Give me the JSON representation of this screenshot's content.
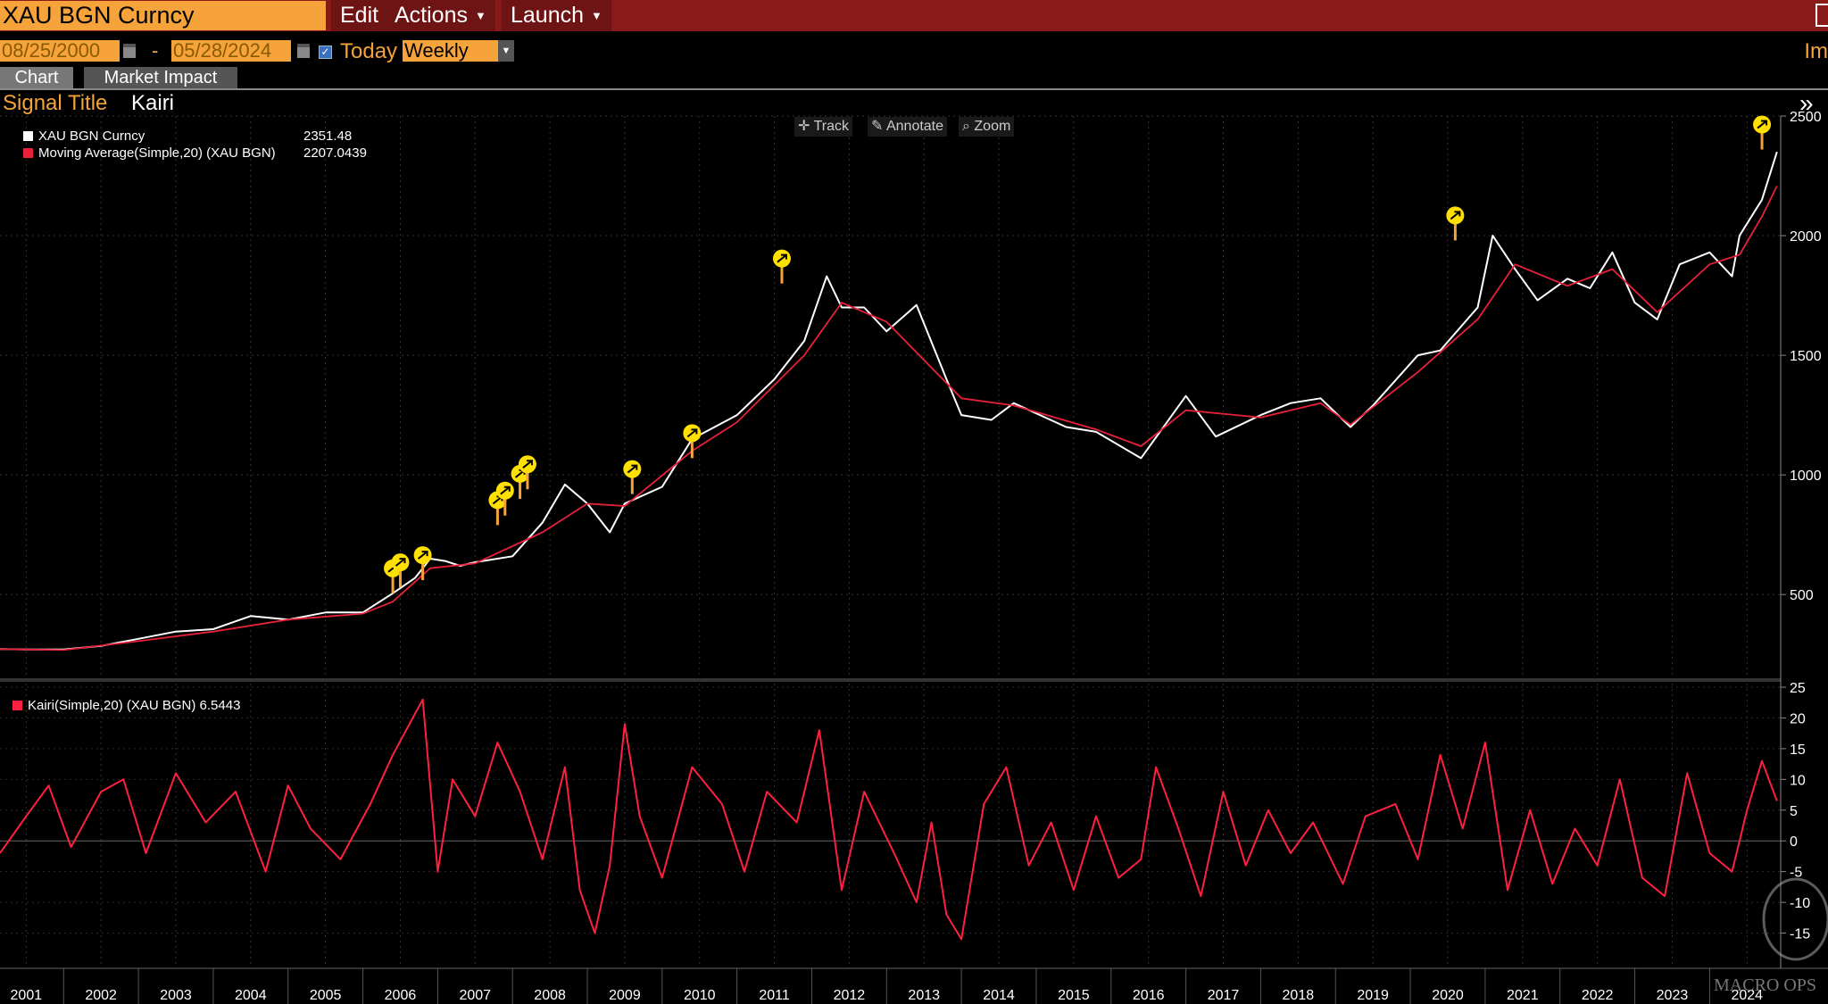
{
  "toolbar": {
    "ticker": "XAU BGN Curncy",
    "menus": [
      {
        "label": "Edit"
      },
      {
        "label": "Actions"
      },
      {
        "label": "Launch"
      }
    ]
  },
  "dates": {
    "start": "08/25/2000",
    "end": "05/28/2024",
    "separator": "-",
    "today_label": "Today",
    "today_checked": true,
    "frequency": "Weekly",
    "right_truncated": "Im"
  },
  "tabs": [
    {
      "label": "Chart",
      "active": true
    },
    {
      "label": "Market Impact",
      "active": false
    }
  ],
  "signal": {
    "label": "Signal Title",
    "value": "Kairi"
  },
  "chart_tools": [
    {
      "label": "Track",
      "icon": "crosshair-icon"
    },
    {
      "label": "Annotate",
      "icon": "pencil-icon"
    },
    {
      "label": "Zoom",
      "icon": "magnifier-icon"
    }
  ],
  "legend": {
    "price": {
      "label": "XAU BGN Curncy",
      "value": "2351.48",
      "color": "#ffffff"
    },
    "ma": {
      "label": "Moving Average(Simple,20) (XAU BGN)",
      "value": "2207.0439",
      "color": "#e8203a"
    },
    "kairi": {
      "label": "Kairi(Simple,20) (XAU BGN)",
      "value": "6.5443",
      "color": "#ff1f40"
    }
  },
  "watermark": "MACRO OPS",
  "colors": {
    "price": "#ffffff",
    "ma": "#e8203a",
    "kairi": "#ff1f40",
    "signal_marker": "#ffe000",
    "signal_tick": "#f5a33a",
    "axis_text": "#ffffff"
  },
  "chart_data": [
    {
      "type": "line",
      "series": [
        {
          "name": "XAU BGN Curncy",
          "x": [
            2000.65,
            2001.0,
            2001.5,
            2002.0,
            2002.5,
            2003.0,
            2003.5,
            2004.0,
            2004.5,
            2005.0,
            2005.5,
            2005.9,
            2006.2,
            2006.4,
            2006.6,
            2006.8,
            2007.0,
            2007.5,
            2007.9,
            2008.2,
            2008.5,
            2008.8,
            2009.0,
            2009.5,
            2009.9,
            2010.5,
            2011.0,
            2011.4,
            2011.7,
            2011.9,
            2012.2,
            2012.5,
            2012.9,
            2013.3,
            2013.5,
            2013.9,
            2014.2,
            2014.9,
            2015.3,
            2015.9,
            2016.5,
            2016.9,
            2017.5,
            2017.9,
            2018.3,
            2018.7,
            2019.0,
            2019.6,
            2019.9,
            2020.4,
            2020.6,
            2020.9,
            2021.2,
            2021.6,
            2021.9,
            2022.2,
            2022.5,
            2022.8,
            2023.1,
            2023.5,
            2023.8,
            2023.9,
            2024.2,
            2024.4
          ],
          "y": [
            272,
            270,
            270,
            285,
            315,
            345,
            355,
            410,
            395,
            425,
            425,
            505,
            570,
            650,
            640,
            620,
            635,
            660,
            800,
            960,
            880,
            760,
            880,
            950,
            1150,
            1250,
            1400,
            1560,
            1830,
            1700,
            1700,
            1600,
            1710,
            1400,
            1250,
            1230,
            1300,
            1200,
            1180,
            1070,
            1330,
            1160,
            1250,
            1300,
            1320,
            1200,
            1290,
            1500,
            1520,
            1700,
            2000,
            1860,
            1730,
            1820,
            1780,
            1930,
            1720,
            1650,
            1880,
            1930,
            1830,
            2000,
            2150,
            2350
          ]
        },
        {
          "name": "Moving Average(Simple,20) (XAU BGN)",
          "x": [
            2000.65,
            2001.5,
            2002.5,
            2003.5,
            2004.5,
            2005.5,
            2005.9,
            2006.4,
            2007.0,
            2007.9,
            2008.5,
            2009.0,
            2009.9,
            2010.5,
            2011.4,
            2011.9,
            2012.5,
            2013.5,
            2014.2,
            2015.3,
            2015.9,
            2016.5,
            2017.5,
            2018.3,
            2018.7,
            2019.6,
            2020.4,
            2020.9,
            2021.6,
            2022.2,
            2022.8,
            2023.5,
            2023.9,
            2024.2,
            2024.4
          ],
          "y": [
            272,
            268,
            305,
            345,
            395,
            420,
            470,
            610,
            630,
            760,
            880,
            870,
            1100,
            1220,
            1500,
            1720,
            1640,
            1320,
            1290,
            1190,
            1120,
            1270,
            1240,
            1300,
            1210,
            1430,
            1650,
            1880,
            1790,
            1860,
            1680,
            1880,
            1920,
            2080,
            2207
          ]
        }
      ],
      "ylim": [
        150,
        2500
      ],
      "yticks": [
        500,
        1000,
        1500,
        2000,
        2500
      ],
      "signals_x": [
        2005.9,
        2006.0,
        2006.3,
        2007.3,
        2007.4,
        2007.6,
        2007.7,
        2009.1,
        2009.9,
        2011.1,
        2020.1,
        2024.2
      ],
      "signals_y": [
        505,
        530,
        560,
        790,
        830,
        900,
        940,
        920,
        1070,
        1800,
        1980,
        2360
      ]
    },
    {
      "type": "line",
      "series": [
        {
          "name": "Kairi(Simple,20) (XAU BGN)",
          "x": [
            2000.65,
            2001.0,
            2001.3,
            2001.6,
            2002.0,
            2002.3,
            2002.6,
            2003.0,
            2003.4,
            2003.8,
            2004.2,
            2004.5,
            2004.8,
            2005.2,
            2005.6,
            2005.9,
            2006.3,
            2006.5,
            2006.7,
            2007.0,
            2007.3,
            2007.6,
            2007.9,
            2008.2,
            2008.4,
            2008.6,
            2008.8,
            2009.0,
            2009.2,
            2009.5,
            2009.9,
            2010.3,
            2010.6,
            2010.9,
            2011.3,
            2011.6,
            2011.9,
            2012.2,
            2012.6,
            2012.9,
            2013.1,
            2013.3,
            2013.5,
            2013.8,
            2014.1,
            2014.4,
            2014.7,
            2015.0,
            2015.3,
            2015.6,
            2015.9,
            2016.1,
            2016.4,
            2016.7,
            2017.0,
            2017.3,
            2017.6,
            2017.9,
            2018.2,
            2018.6,
            2018.9,
            2019.3,
            2019.6,
            2019.9,
            2020.2,
            2020.5,
            2020.8,
            2021.1,
            2021.4,
            2021.7,
            2022.0,
            2022.3,
            2022.6,
            2022.9,
            2023.2,
            2023.5,
            2023.8,
            2024.0,
            2024.2,
            2024.4
          ],
          "y": [
            -2,
            4,
            9,
            -1,
            8,
            10,
            -2,
            11,
            3,
            8,
            -5,
            9,
            2,
            -3,
            6,
            14,
            23,
            -5,
            10,
            4,
            16,
            8,
            -3,
            12,
            -8,
            -15,
            -4,
            19,
            4,
            -6,
            12,
            6,
            -5,
            8,
            3,
            18,
            -8,
            8,
            -2,
            -10,
            3,
            -12,
            -16,
            6,
            12,
            -4,
            3,
            -8,
            4,
            -6,
            -3,
            12,
            2,
            -9,
            8,
            -4,
            5,
            -2,
            3,
            -7,
            4,
            6,
            -3,
            14,
            2,
            16,
            -8,
            5,
            -7,
            2,
            -4,
            10,
            -6,
            -9,
            11,
            -2,
            -5,
            5,
            13,
            6.5
          ]
        }
      ],
      "ylim": [
        -20,
        25
      ],
      "yticks": [
        -15,
        -10,
        -5,
        0,
        5,
        10,
        15,
        20,
        25
      ]
    }
  ],
  "x_axis_labels": [
    "2001",
    "2002",
    "2003",
    "2004",
    "2005",
    "2006",
    "2007",
    "2008",
    "2009",
    "2010",
    "2011",
    "2012",
    "2013",
    "2014",
    "2015",
    "2016",
    "2017",
    "2018",
    "2019",
    "2020",
    "2021",
    "2022",
    "2023",
    "2024"
  ]
}
